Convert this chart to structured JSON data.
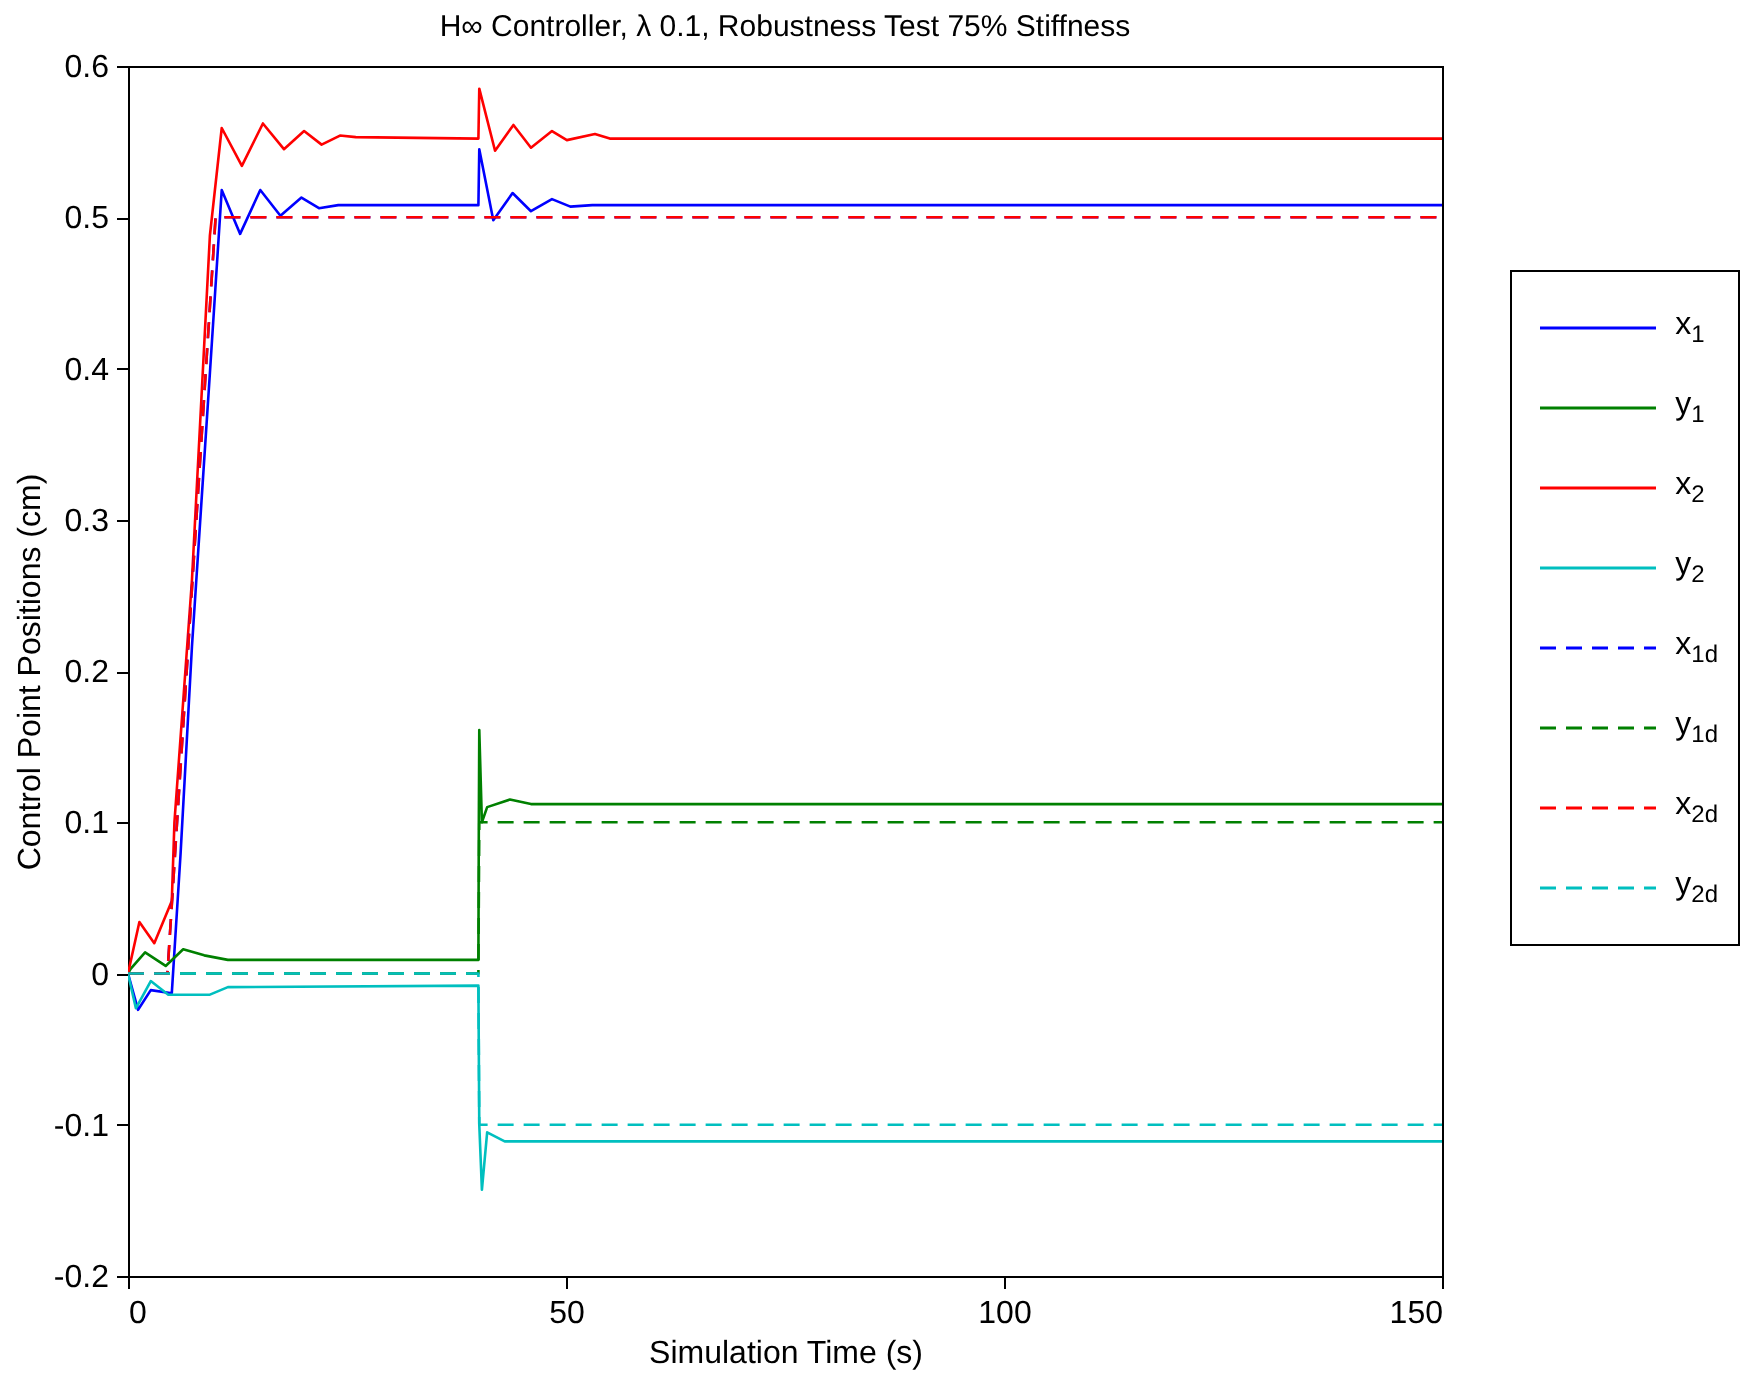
{
  "chart_data": {
    "type": "line",
    "title": "H∞ Controller, λ 0.1, Robustness Test 75% Stiffness",
    "xlabel": "Simulation Time (s)",
    "ylabel": "Control Point Positions (cm)",
    "xlim": [
      0,
      150
    ],
    "ylim": [
      -0.2,
      0.6
    ],
    "xticks": [
      0,
      50,
      100,
      150
    ],
    "yticks": [
      -0.2,
      -0.1,
      0,
      0.1,
      0.2,
      0.3,
      0.4,
      0.5,
      0.6
    ],
    "grid": false,
    "legend": "right",
    "series": [
      {
        "name": "x$_{1}$",
        "color": "#0000ff",
        "line_style": "solid",
        "x": [
          0,
          1.15,
          2.6,
          5,
          6,
          7.3,
          9.35,
          10.7,
          12.8,
          15.1,
          17.4,
          19.8,
          21.8,
          24,
          40,
          40.1,
          41.7,
          43.9,
          46,
          48.4,
          50.5,
          53,
          150
        ],
        "values": [
          0,
          -0.024,
          -0.011,
          -0.013,
          0.079,
          0.216,
          0.397,
          0.518,
          0.489,
          0.518,
          0.501,
          0.513,
          0.506,
          0.508,
          0.508,
          0.545,
          0.498,
          0.516,
          0.504,
          0.512,
          0.507,
          0.508,
          0.508
        ]
      },
      {
        "name": "y$_{1}$",
        "color": "#008000",
        "line_style": "solid",
        "x": [
          0,
          0.3,
          1.95,
          4.3,
          6.3,
          8.7,
          11.4,
          40,
          40.05,
          40.1,
          40.4,
          41,
          43.6,
          46,
          150
        ],
        "values": [
          0,
          0.003,
          0.014,
          0.005,
          0.016,
          0.012,
          0.009,
          0.009,
          0.102,
          0.161,
          0.1,
          0.11,
          0.115,
          0.112,
          0.112
        ]
      },
      {
        "name": "x$_{2}$",
        "color": "#ff0000",
        "line_style": "solid",
        "x": [
          0,
          1.3,
          3,
          5,
          5.3,
          7.3,
          9.35,
          10.7,
          13,
          15.4,
          17.8,
          20.1,
          22.1,
          24.2,
          26,
          40,
          40.1,
          41.9,
          44,
          46,
          48.4,
          50.1,
          53.3,
          55,
          150
        ],
        "values": [
          0,
          0.034,
          0.02,
          0.048,
          0.1,
          0.26,
          0.488,
          0.559,
          0.534,
          0.562,
          0.545,
          0.557,
          0.548,
          0.554,
          0.553,
          0.552,
          0.585,
          0.544,
          0.561,
          0.546,
          0.557,
          0.551,
          0.555,
          0.552,
          0.552
        ]
      },
      {
        "name": "y$_{2}$",
        "color": "#00bfbf",
        "line_style": "solid",
        "x": [
          0,
          0.9,
          2.6,
          4.6,
          9.35,
          11.4,
          40,
          40.1,
          40.4,
          41,
          43,
          150
        ],
        "values": [
          0,
          -0.023,
          -0.005,
          -0.014,
          -0.014,
          -0.009,
          -0.008,
          -0.1,
          -0.143,
          -0.105,
          -0.111,
          -0.111
        ]
      },
      {
        "name": "x$_{1d}$",
        "color": "#0000ff",
        "line_style": "dashed",
        "x": [
          0,
          4.5,
          10,
          150
        ],
        "values": [
          0,
          0,
          0.5,
          0.5
        ]
      },
      {
        "name": "y$_{1d}$",
        "color": "#008000",
        "line_style": "dashed",
        "x": [
          0,
          40,
          40.1,
          150
        ],
        "values": [
          0,
          0,
          0.1,
          0.1
        ]
      },
      {
        "name": "x$_{2d}$",
        "color": "#ff0000",
        "line_style": "dashed",
        "x": [
          0,
          4.5,
          10,
          150
        ],
        "values": [
          0,
          0,
          0.5,
          0.5
        ]
      },
      {
        "name": "y$_{2d}$",
        "color": "#00bfbf",
        "line_style": "dashed",
        "x": [
          0,
          40,
          40.1,
          150
        ],
        "values": [
          0,
          0,
          -0.1,
          -0.1
        ]
      }
    ]
  }
}
